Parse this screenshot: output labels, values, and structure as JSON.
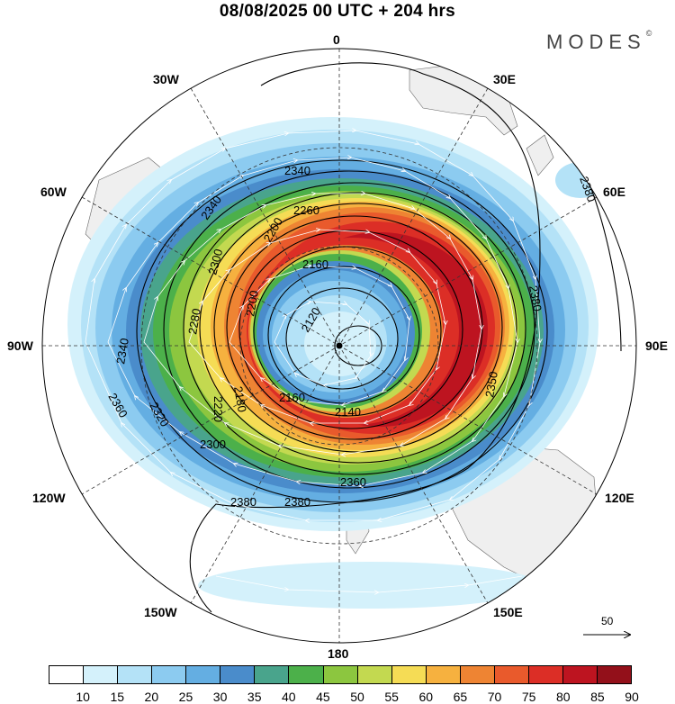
{
  "header": {
    "title": "08/08/2025  00 UTC  + 204 hrs"
  },
  "logo": {
    "text": "MODES",
    "mark": "©"
  },
  "longitude_labels": {
    "lon_0": "0",
    "lon_30e": "30E",
    "lon_60e": "60E",
    "lon_90e": "90E",
    "lon_120e": "120E",
    "lon_150e": "150E",
    "lon_180": "180",
    "lon_150w": "150W",
    "lon_120w": "120W",
    "lon_90w": "90W",
    "lon_60w": "60W",
    "lon_30w": "30W"
  },
  "contours": {
    "c2120": "2120",
    "c2140": "2140",
    "c2160a": "2160",
    "c2160b": "2160",
    "c2180": "2180",
    "c2200a": "2200",
    "c2200b": "2200",
    "c2220": "2220",
    "c2260": "2260",
    "c2280": "2280",
    "c2300a": "2300",
    "c2300b": "2300",
    "c2320": "2320",
    "c2340a": "2340",
    "c2340b": "2340",
    "c2340c": "2340",
    "c2350": "2350",
    "c2360a": "2360",
    "c2360b": "2360",
    "c2380a": "2380",
    "c2380b": "2380",
    "c2380c": "2380",
    "c2380d": "2380"
  },
  "reference_vector": {
    "label": "50"
  },
  "colorbar": {
    "ticks": [
      "10",
      "15",
      "20",
      "25",
      "30",
      "35",
      "40",
      "45",
      "50",
      "55",
      "60",
      "65",
      "70",
      "75",
      "80",
      "85",
      "90"
    ],
    "colors": [
      "#ffffff",
      "#d4f1fb",
      "#b4e2f7",
      "#8ccbf0",
      "#64aee2",
      "#4a8ccb",
      "#49a48c",
      "#4cb04a",
      "#8cc63f",
      "#c3d950",
      "#f5dc55",
      "#f6b13f",
      "#ee8433",
      "#e95a2c",
      "#dc2e26",
      "#bd1420",
      "#93101a"
    ]
  }
}
